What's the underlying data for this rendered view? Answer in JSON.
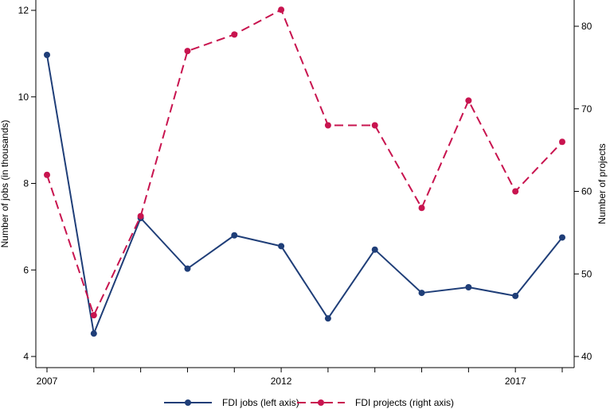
{
  "chart_data": {
    "type": "line",
    "title": "",
    "x": [
      2007,
      2008,
      2009,
      2010,
      2011,
      2012,
      2013,
      2014,
      2015,
      2016,
      2017,
      2018
    ],
    "xlim": [
      2007,
      2018
    ],
    "x_tick_labels": [
      "2007",
      "2012",
      "2017"
    ],
    "x_tick_label_values": [
      2007,
      2012,
      2017
    ],
    "ylabel_left": "Number of jobs (in thousands)",
    "ylabel_right": "Number of projects",
    "ylim_left": [
      4,
      12
    ],
    "ylim_right": [
      40,
      82
    ],
    "yticks_left": [
      "4",
      "6",
      "8",
      "10",
      "12"
    ],
    "yticks_right": [
      "40",
      "50",
      "60",
      "70",
      "80"
    ],
    "grid": false,
    "legend_position": "bottom",
    "series": [
      {
        "name": "FDI jobs (left axis)",
        "axis": "left",
        "style": "solid",
        "color": "#1f3e78",
        "values": [
          10.97,
          4.53,
          7.2,
          6.03,
          6.8,
          6.55,
          4.88,
          6.47,
          5.47,
          5.6,
          5.4,
          6.75
        ]
      },
      {
        "name": "FDI projects (right axis)",
        "axis": "right",
        "style": "dashed",
        "color": "#c8144f",
        "values": [
          62,
          45,
          57,
          77,
          79,
          82,
          68,
          68,
          58,
          71,
          60,
          66
        ]
      }
    ]
  }
}
